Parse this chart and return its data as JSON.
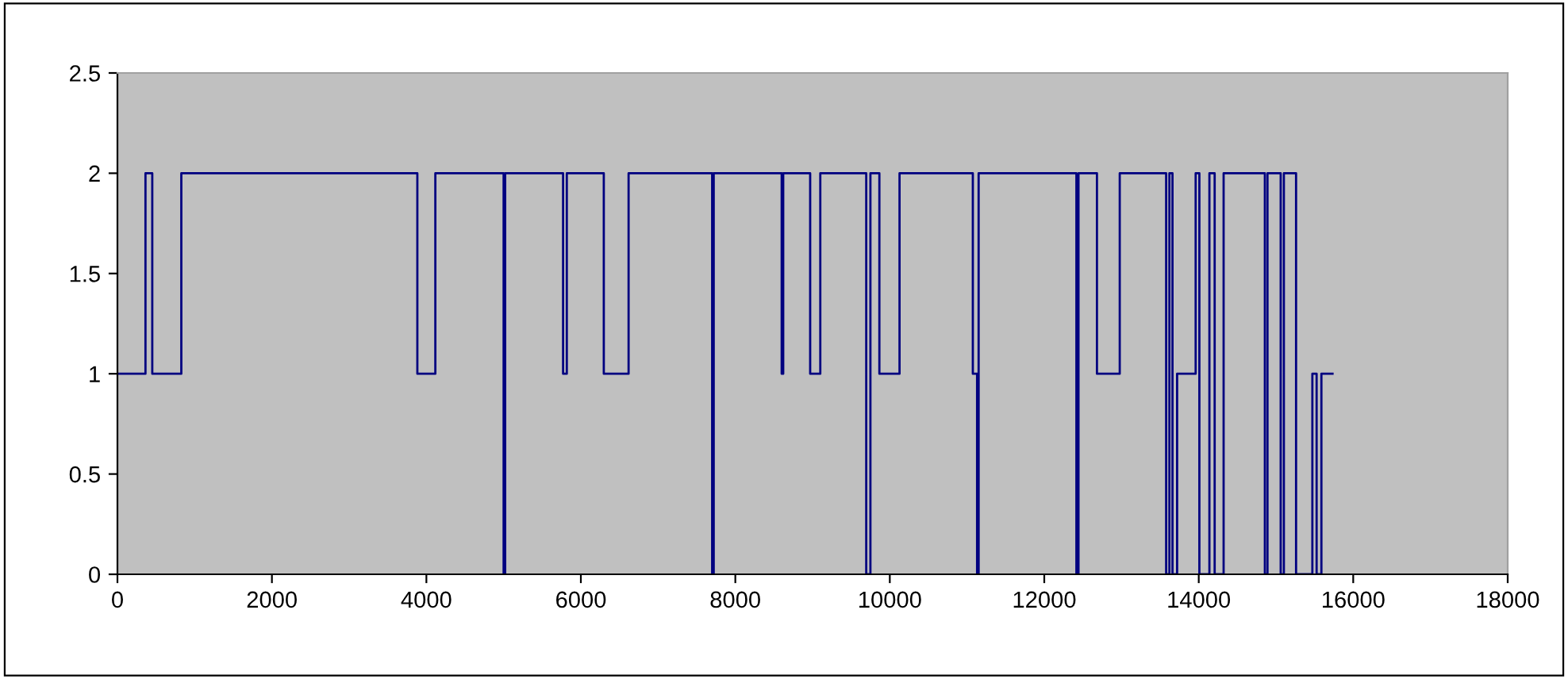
{
  "chart_data": {
    "type": "step",
    "x": [
      0,
      363,
      451,
      827,
      3883,
      4116,
      5000,
      5020,
      5770,
      5818,
      6297,
      6618,
      7700,
      7720,
      8600,
      8620,
      8969,
      9100,
      9695,
      9749,
      9865,
      10126,
      11075,
      11130,
      11150,
      12416,
      12443,
      12682,
      12977,
      13578,
      13620,
      13660,
      13720,
      13960,
      14008,
      14138,
      14206,
      14322,
      14856,
      14890,
      15061,
      15102,
      15260,
      15471,
      15526,
      15588,
      15732
    ],
    "series": [
      {
        "color": "#000080",
        "values": [
          1,
          2,
          1,
          2,
          1,
          2,
          0,
          2,
          1,
          2,
          1,
          2,
          0,
          2,
          1,
          2,
          1,
          2,
          0,
          2,
          1,
          2,
          1,
          0,
          2,
          0,
          2,
          1,
          2,
          0,
          2,
          0,
          1,
          2,
          0,
          2,
          0,
          2,
          0,
          2,
          0,
          2,
          0,
          1,
          0,
          1,
          1
        ]
      }
    ],
    "xlim": [
      0,
      18000
    ],
    "xticks": [
      0,
      2000,
      4000,
      6000,
      8000,
      10000,
      12000,
      14000,
      16000,
      18000
    ],
    "ylim": [
      0,
      2.5
    ],
    "yticks": [
      0,
      0.5,
      1,
      1.5,
      2,
      2.5
    ],
    "grid": false,
    "legend": false,
    "marker": "none",
    "line_style": "solid"
  }
}
